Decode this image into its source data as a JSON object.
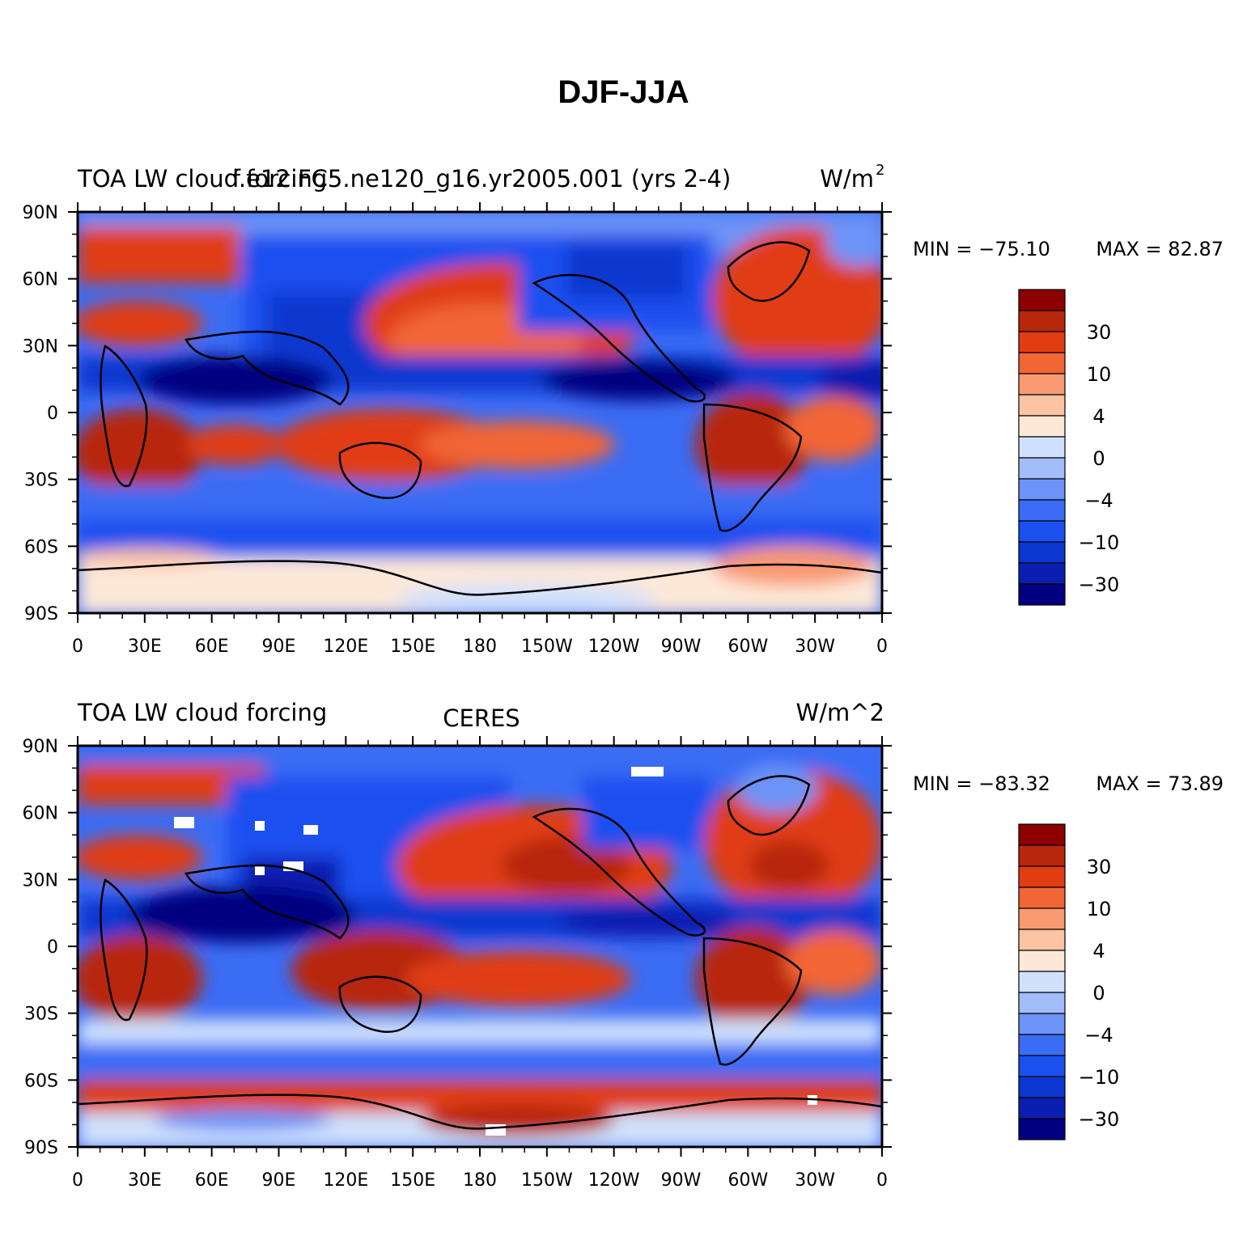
{
  "title": "DJF-JJA",
  "panels": [
    {
      "left_title": "TOA LW cloud forcing",
      "center_title": "f.e12.FC5.ne120_g16.yr2005.001 (yrs 2-4)",
      "units": "W/m",
      "units_superscript": "2",
      "min_label": "MIN = −75.10",
      "max_label": "MAX =  82.87"
    },
    {
      "left_title": "TOA LW cloud forcing",
      "center_title": "CERES",
      "units": "W/m^2",
      "units_superscript": "",
      "min_label": "MIN = −83.32",
      "max_label": "MAX =  73.89"
    }
  ],
  "colorbar": {
    "colors": [
      "#000080",
      "#0a1fb0",
      "#0a37d0",
      "#1a50ef",
      "#3b6cf4",
      "#6c93f7",
      "#a2bdf9",
      "#cfe1fd",
      "#fde8d8",
      "#fcc3a5",
      "#f99a72",
      "#f26535",
      "#e03d13",
      "#b82709",
      "#8c0000"
    ],
    "labels": [
      "−30",
      "−10",
      "−4",
      "0",
      "4",
      "10",
      "30"
    ]
  },
  "chart_data": [
    {
      "type": "heatmap",
      "title": "f.e12.FC5.ne120_g16.yr2005.001 (yrs 2-4)",
      "variable": "TOA LW cloud forcing",
      "units": "W/m2",
      "x_ticks": [
        "0",
        "30E",
        "60E",
        "90E",
        "120E",
        "150E",
        "180",
        "150W",
        "120W",
        "90W",
        "60W",
        "30W",
        "0"
      ],
      "y_ticks": [
        "90N",
        "60N",
        "30N",
        "0",
        "30S",
        "60S",
        "90S"
      ],
      "xlim": [
        0,
        360
      ],
      "ylim": [
        -90,
        90
      ],
      "min": -75.1,
      "max": 82.87,
      "contour_levels": [
        -40,
        -30,
        -20,
        -10,
        -7,
        -4,
        -2,
        0,
        2,
        4,
        7,
        10,
        20,
        30,
        40
      ]
    },
    {
      "type": "heatmap",
      "title": "CERES",
      "variable": "TOA LW cloud forcing",
      "units": "W/m^2",
      "x_ticks": [
        "0",
        "30E",
        "60E",
        "90E",
        "120E",
        "150E",
        "180",
        "150W",
        "120W",
        "90W",
        "60W",
        "30W",
        "0"
      ],
      "y_ticks": [
        "90N",
        "60N",
        "30N",
        "0",
        "30S",
        "60S",
        "90S"
      ],
      "xlim": [
        0,
        360
      ],
      "ylim": [
        -90,
        90
      ],
      "min": -83.32,
      "max": 73.89,
      "contour_levels": [
        -40,
        -30,
        -20,
        -10,
        -7,
        -4,
        -2,
        0,
        2,
        4,
        7,
        10,
        20,
        30,
        40
      ]
    }
  ]
}
